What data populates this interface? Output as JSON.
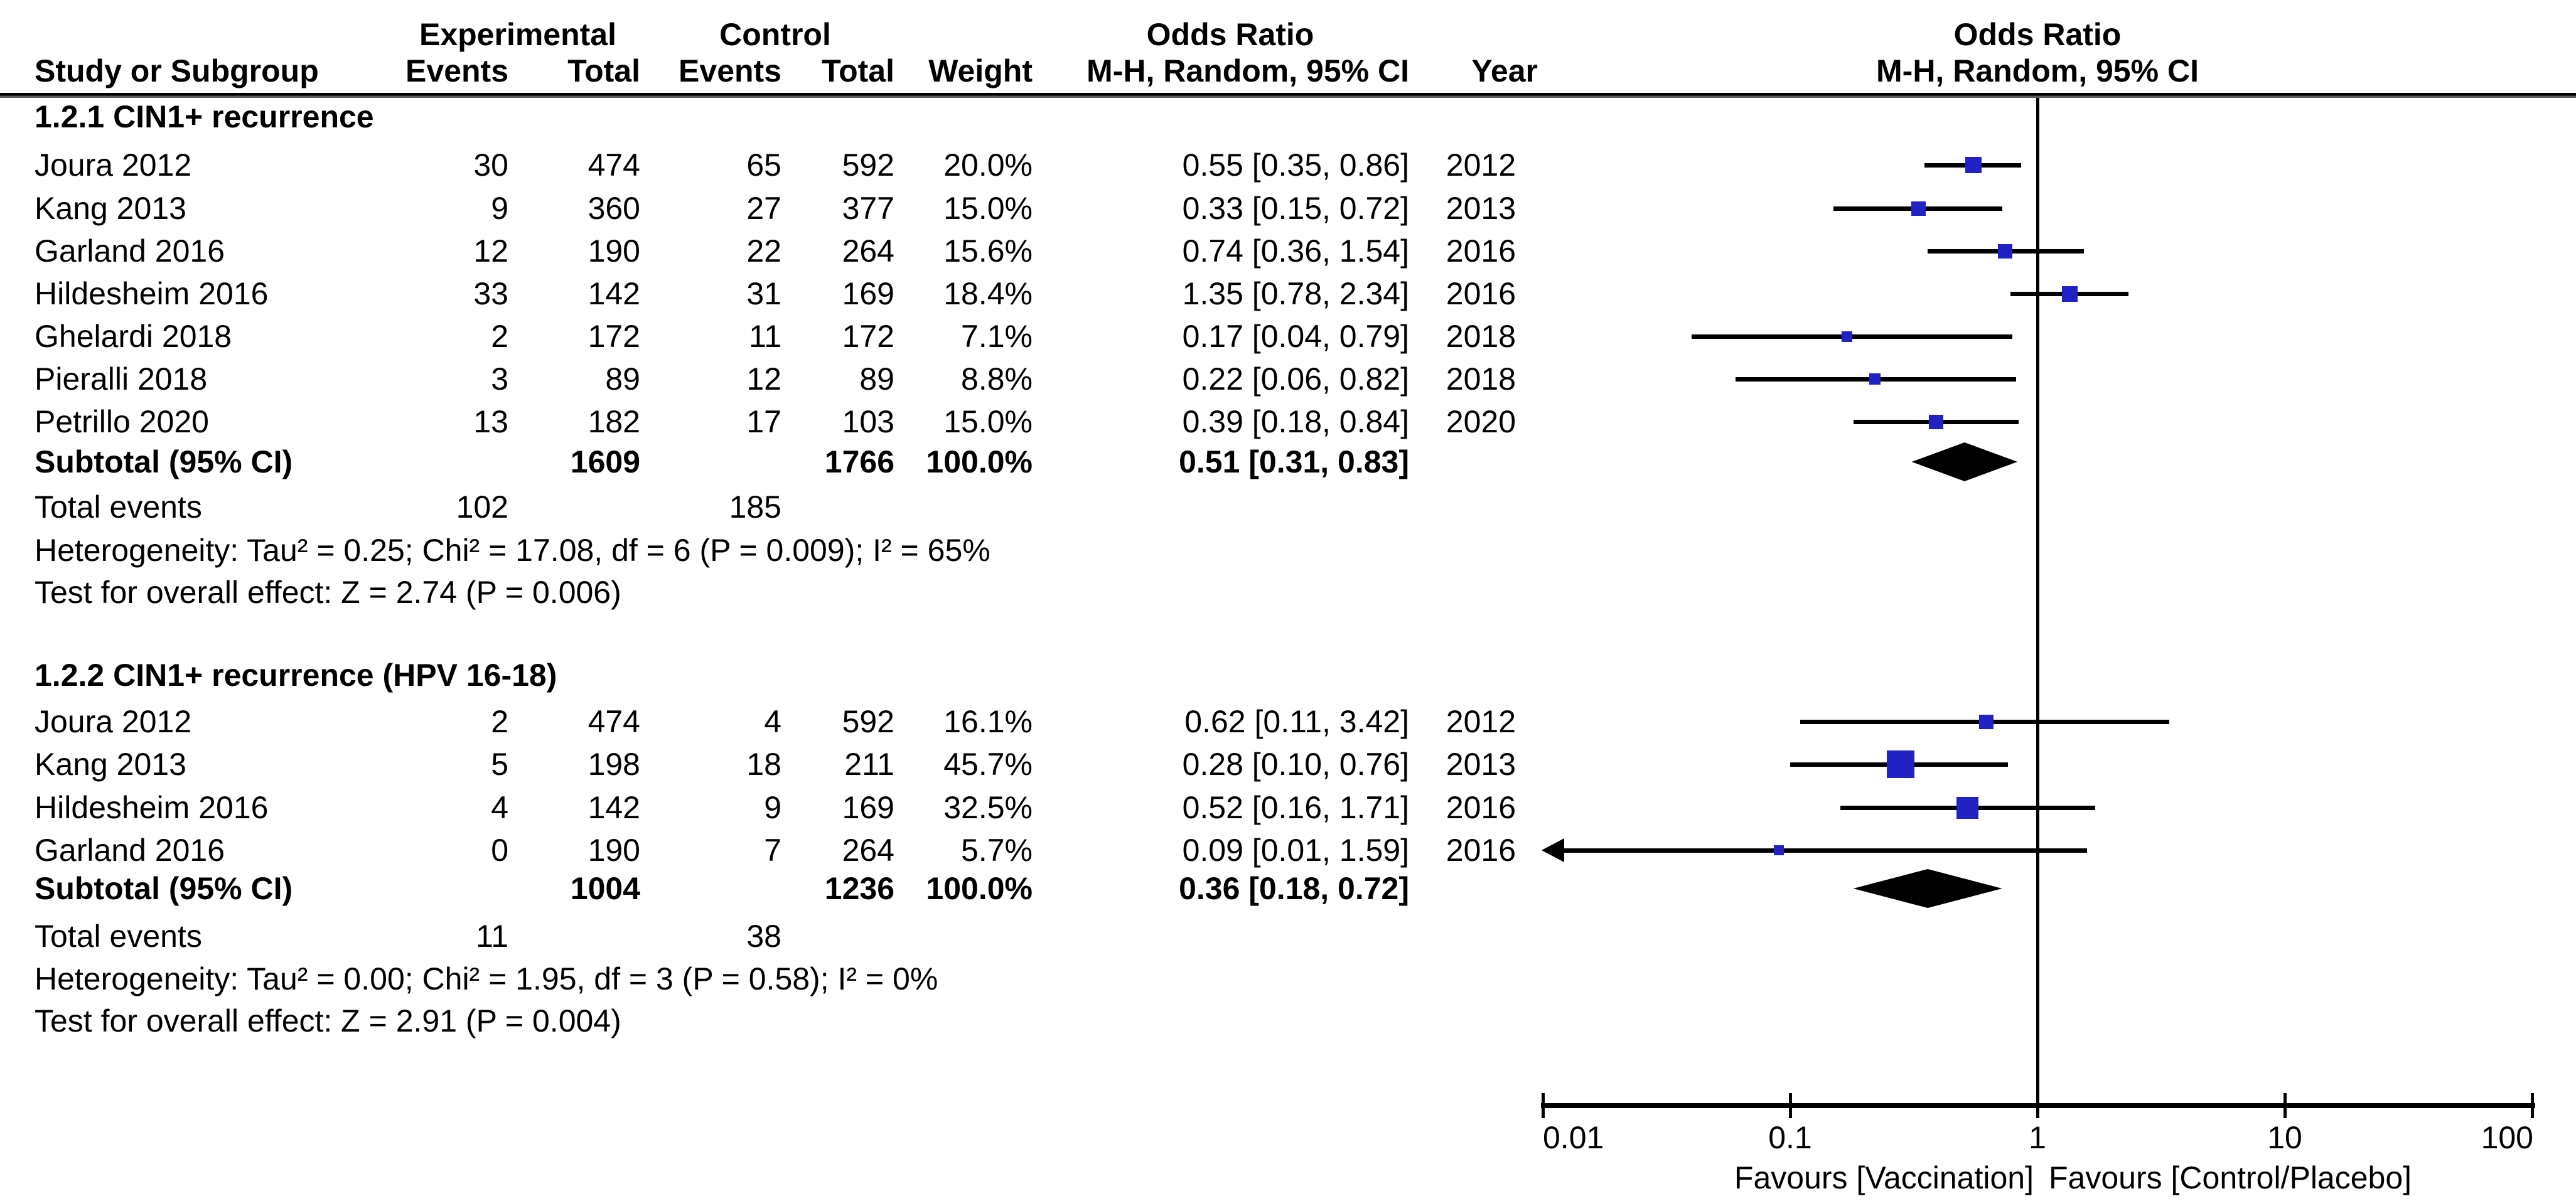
{
  "header": {
    "group_experimental": "Experimental",
    "group_control": "Control",
    "or_header_left": "Odds Ratio",
    "or_header_right": "Odds Ratio",
    "col_study": "Study or Subgroup",
    "col_events_exp": "Events",
    "col_total_exp": "Total",
    "col_events_ctrl": "Events",
    "col_total_ctrl": "Total",
    "col_weight": "Weight",
    "col_or_left": "M-H, Random, 95% CI",
    "col_year": "Year",
    "col_or_right": "M-H, Random, 95% CI"
  },
  "axis": {
    "tick_labels": [
      "0.01",
      "0.1",
      "1",
      "10",
      "100"
    ],
    "tick_values": [
      0.01,
      0.1,
      1,
      10,
      100
    ],
    "favours_left": "Favours [Vaccination]",
    "favours_right": "Favours [Control/Placebo]"
  },
  "colors": {
    "square": "#2222c4",
    "diamond": "#000000",
    "ci_line": "#000000",
    "text": "#000000",
    "background": "#ffffff"
  },
  "chart_data": {
    "type": "scatter",
    "subtype": "forest-plot-meta-analysis",
    "effect_measure": "Odds Ratio, M-H, Random, 95% CI",
    "x_scale": "log10",
    "x_range": [
      0.01,
      100
    ],
    "x_ticks": [
      0.01,
      0.1,
      1,
      10,
      100
    ],
    "sections": [
      {
        "title": "1.2.1 CIN1+ recurrence",
        "studies": [
          {
            "study": "Joura 2012",
            "exp_events": "30",
            "exp_total": "474",
            "ctrl_events": "65",
            "ctrl_total": "592",
            "weight": "20.0%",
            "weight_pct": 20.0,
            "or": 0.55,
            "ci_lo": 0.35,
            "ci_hi": 0.86,
            "or_text": "0.55 [0.35, 0.86]",
            "year": "2012"
          },
          {
            "study": "Kang 2013",
            "exp_events": "9",
            "exp_total": "360",
            "ctrl_events": "27",
            "ctrl_total": "377",
            "weight": "15.0%",
            "weight_pct": 15.0,
            "or": 0.33,
            "ci_lo": 0.15,
            "ci_hi": 0.72,
            "or_text": "0.33 [0.15, 0.72]",
            "year": "2013"
          },
          {
            "study": "Garland 2016",
            "exp_events": "12",
            "exp_total": "190",
            "ctrl_events": "22",
            "ctrl_total": "264",
            "weight": "15.6%",
            "weight_pct": 15.6,
            "or": 0.74,
            "ci_lo": 0.36,
            "ci_hi": 1.54,
            "or_text": "0.74 [0.36, 1.54]",
            "year": "2016"
          },
          {
            "study": "Hildesheim 2016",
            "exp_events": "33",
            "exp_total": "142",
            "ctrl_events": "31",
            "ctrl_total": "169",
            "weight": "18.4%",
            "weight_pct": 18.4,
            "or": 1.35,
            "ci_lo": 0.78,
            "ci_hi": 2.34,
            "or_text": "1.35 [0.78, 2.34]",
            "year": "2016"
          },
          {
            "study": "Ghelardi 2018",
            "exp_events": "2",
            "exp_total": "172",
            "ctrl_events": "11",
            "ctrl_total": "172",
            "weight": "7.1%",
            "weight_pct": 7.1,
            "or": 0.17,
            "ci_lo": 0.04,
            "ci_hi": 0.79,
            "or_text": "0.17 [0.04, 0.79]",
            "year": "2018"
          },
          {
            "study": "Pieralli 2018",
            "exp_events": "3",
            "exp_total": "89",
            "ctrl_events": "12",
            "ctrl_total": "89",
            "weight": "8.8%",
            "weight_pct": 8.8,
            "or": 0.22,
            "ci_lo": 0.06,
            "ci_hi": 0.82,
            "or_text": "0.22 [0.06, 0.82]",
            "year": "2018"
          },
          {
            "study": "Petrillo 2020",
            "exp_events": "13",
            "exp_total": "182",
            "ctrl_events": "17",
            "ctrl_total": "103",
            "weight": "15.0%",
            "weight_pct": 15.0,
            "or": 0.39,
            "ci_lo": 0.18,
            "ci_hi": 0.84,
            "or_text": "0.39 [0.18, 0.84]",
            "year": "2020"
          }
        ],
        "subtotal": {
          "label": "Subtotal (95% CI)",
          "exp_total": "1609",
          "ctrl_total": "1766",
          "weight": "100.0%",
          "or": 0.51,
          "ci_lo": 0.31,
          "ci_hi": 0.83,
          "or_text": "0.51 [0.31, 0.83]"
        },
        "total_events": {
          "label": "Total events",
          "exp": "102",
          "ctrl": "185"
        },
        "heterogeneity": "Heterogeneity: Tau² = 0.25; Chi² = 17.08, df = 6 (P = 0.009); I² = 65%",
        "overall_effect": "Test for overall effect: Z = 2.74 (P = 0.006)"
      },
      {
        "title": "1.2.2 CIN1+ recurrence (HPV 16-18)",
        "studies": [
          {
            "study": "Joura 2012",
            "exp_events": "2",
            "exp_total": "474",
            "ctrl_events": "4",
            "ctrl_total": "592",
            "weight": "16.1%",
            "weight_pct": 16.1,
            "or": 0.62,
            "ci_lo": 0.11,
            "ci_hi": 3.42,
            "or_text": "0.62 [0.11, 3.42]",
            "year": "2012"
          },
          {
            "study": "Kang 2013",
            "exp_events": "5",
            "exp_total": "198",
            "ctrl_events": "18",
            "ctrl_total": "211",
            "weight": "45.7%",
            "weight_pct": 45.7,
            "or": 0.28,
            "ci_lo": 0.1,
            "ci_hi": 0.76,
            "or_text": "0.28 [0.10, 0.76]",
            "year": "2013"
          },
          {
            "study": "Hildesheim 2016",
            "exp_events": "4",
            "exp_total": "142",
            "ctrl_events": "9",
            "ctrl_total": "169",
            "weight": "32.5%",
            "weight_pct": 32.5,
            "or": 0.52,
            "ci_lo": 0.16,
            "ci_hi": 1.71,
            "or_text": "0.52 [0.16, 1.71]",
            "year": "2016"
          },
          {
            "study": "Garland 2016",
            "exp_events": "0",
            "exp_total": "190",
            "ctrl_events": "7",
            "ctrl_total": "264",
            "weight": "5.7%",
            "weight_pct": 5.7,
            "or": 0.09,
            "ci_lo": 0.01,
            "ci_hi": 1.59,
            "or_text": "0.09 [0.01, 1.59]",
            "year": "2016",
            "clip_lo": true
          }
        ],
        "subtotal": {
          "label": "Subtotal (95% CI)",
          "exp_total": "1004",
          "ctrl_total": "1236",
          "weight": "100.0%",
          "or": 0.36,
          "ci_lo": 0.18,
          "ci_hi": 0.72,
          "or_text": "0.36 [0.18, 0.72]"
        },
        "total_events": {
          "label": "Total events",
          "exp": "11",
          "ctrl": "38"
        },
        "heterogeneity": "Heterogeneity: Tau² = 0.00; Chi² = 1.95, df = 3 (P = 0.58); I² = 0%",
        "overall_effect": "Test for overall effect: Z = 2.91 (P = 0.004)"
      }
    ]
  }
}
